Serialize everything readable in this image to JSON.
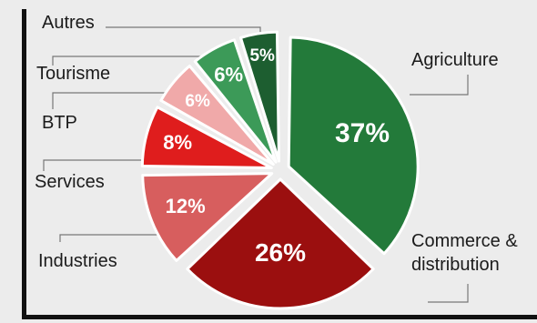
{
  "chart_data": {
    "type": "pie",
    "slices": [
      {
        "label": "Agriculture",
        "lines": [
          "Agriculture"
        ],
        "value": 37,
        "display": "37%",
        "color": "#237a3a"
      },
      {
        "label": "Commerce & distribution",
        "lines": [
          "Commerce &",
          "distribution"
        ],
        "value": 26,
        "display": "26%",
        "color": "#9b0f0f"
      },
      {
        "label": "Industries",
        "lines": [
          "Industries"
        ],
        "value": 12,
        "display": "12%",
        "color": "#d75e5e"
      },
      {
        "label": "Services",
        "lines": [
          "Services"
        ],
        "value": 8,
        "display": "8%",
        "color": "#df1d1d"
      },
      {
        "label": "BTP",
        "lines": [
          "BTP"
        ],
        "value": 6,
        "display": "6%",
        "color": "#f0a9a9"
      },
      {
        "label": "Tourisme",
        "lines": [
          "Tourisme"
        ],
        "value": 6,
        "display": "6%",
        "color": "#3c9a58"
      },
      {
        "label": "Autres",
        "lines": [
          "Autres"
        ],
        "value": 5,
        "display": "5%",
        "color": "#1d5e30"
      }
    ]
  }
}
